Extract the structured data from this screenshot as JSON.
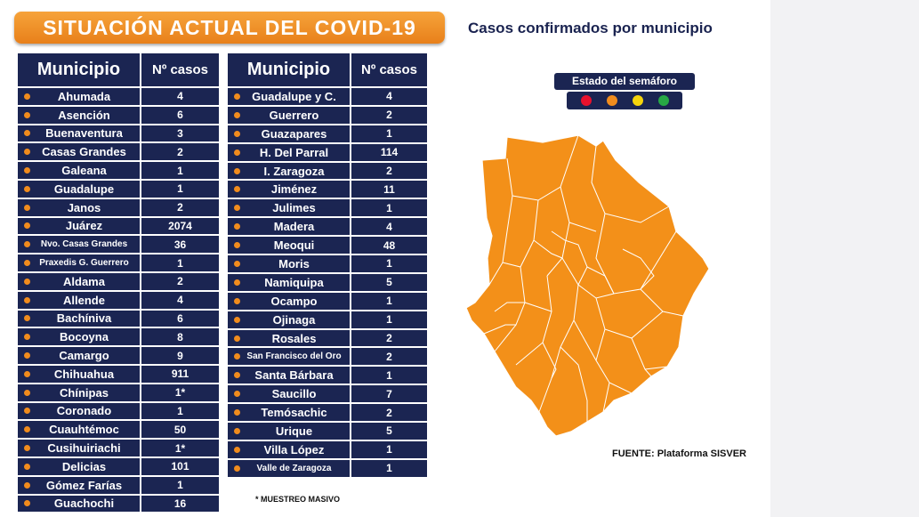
{
  "title": "SITUACIÓN ACTUAL DEL COVID-19",
  "subtitle": "Casos confirmados por municipio",
  "headers": {
    "municipio": "Municipio",
    "casos": "Nº casos"
  },
  "table_left": [
    {
      "name": "Ahumada",
      "cases": "4"
    },
    {
      "name": "Asención",
      "cases": "6"
    },
    {
      "name": "Buenaventura",
      "cases": "3"
    },
    {
      "name": "Casas Grandes",
      "cases": "2"
    },
    {
      "name": "Galeana",
      "cases": "1"
    },
    {
      "name": "Guadalupe",
      "cases": "1"
    },
    {
      "name": "Janos",
      "cases": "2"
    },
    {
      "name": "Juárez",
      "cases": "2074"
    },
    {
      "name": "Nvo. Casas Grandes",
      "cases": "36",
      "small": true
    },
    {
      "name": "Praxedis G. Guerrero",
      "cases": "1",
      "small": true
    },
    {
      "name": "Aldama",
      "cases": "2"
    },
    {
      "name": "Allende",
      "cases": "4"
    },
    {
      "name": "Bachíniva",
      "cases": "6"
    },
    {
      "name": "Bocoyna",
      "cases": "8"
    },
    {
      "name": "Camargo",
      "cases": "9"
    },
    {
      "name": "Chihuahua",
      "cases": "911"
    },
    {
      "name": "Chínipas",
      "cases": "1*"
    },
    {
      "name": "Coronado",
      "cases": "1"
    },
    {
      "name": "Cuauhtémoc",
      "cases": "50"
    },
    {
      "name": "Cusihuiriachi",
      "cases": "1*"
    },
    {
      "name": "Delicias",
      "cases": "101"
    },
    {
      "name": "Gómez Farías",
      "cases": "1"
    },
    {
      "name": "Guachochi",
      "cases": "16"
    }
  ],
  "table_right": [
    {
      "name": "Guadalupe y C.",
      "cases": "4"
    },
    {
      "name": "Guerrero",
      "cases": "2"
    },
    {
      "name": "Guazapares",
      "cases": "1"
    },
    {
      "name": "H. Del Parral",
      "cases": "114"
    },
    {
      "name": "I. Zaragoza",
      "cases": "2"
    },
    {
      "name": "Jiménez",
      "cases": "11"
    },
    {
      "name": "Julimes",
      "cases": "1"
    },
    {
      "name": "Madera",
      "cases": "4"
    },
    {
      "name": "Meoqui",
      "cases": "48"
    },
    {
      "name": "Moris",
      "cases": "1"
    },
    {
      "name": "Namiquipa",
      "cases": "5"
    },
    {
      "name": "Ocampo",
      "cases": "1"
    },
    {
      "name": "Ojinaga",
      "cases": "1"
    },
    {
      "name": "Rosales",
      "cases": "2"
    },
    {
      "name": "San Francisco del Oro",
      "cases": "2",
      "small": true
    },
    {
      "name": "Santa Bárbara",
      "cases": "1"
    },
    {
      "name": "Saucillo",
      "cases": "7"
    },
    {
      "name": "Temósachic",
      "cases": "2"
    },
    {
      "name": "Urique",
      "cases": "5"
    },
    {
      "name": "Villa López",
      "cases": "1"
    },
    {
      "name": "Valle de Zaragoza",
      "cases": "1",
      "small": true
    }
  ],
  "note": "* MUESTREO MASIVO",
  "legend": {
    "title": "Estado del semáforo",
    "lights": [
      {
        "color_name": "red",
        "hex": "#e8112d"
      },
      {
        "color_name": "orange",
        "hex": "#f18c1d"
      },
      {
        "color_name": "yellow",
        "hex": "#f5d40c"
      },
      {
        "color_name": "green",
        "hex": "#27a845"
      }
    ]
  },
  "source": "FUENTE: Plataforma SISVER",
  "colors": {
    "navy": "#1b2552",
    "orange": "#f18c1d",
    "map_fill": "#f39019"
  }
}
